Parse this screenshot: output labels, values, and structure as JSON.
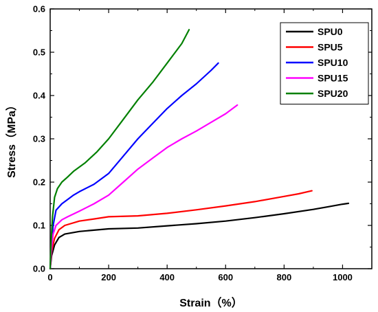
{
  "chart_data": {
    "type": "line",
    "xlabel": "Strain（%）",
    "ylabel": "Stress（MPa）",
    "xlim": [
      0,
      1100
    ],
    "ylim": [
      0,
      0.6
    ],
    "xticks": [
      0,
      200,
      400,
      600,
      800,
      1000
    ],
    "yticks": [
      0.0,
      0.1,
      0.2,
      0.3,
      0.4,
      0.5,
      0.6
    ],
    "xtick_labels": [
      "0",
      "200",
      "400",
      "600",
      "800",
      "1000"
    ],
    "ytick_labels": [
      "0.0",
      "0.1",
      "0.2",
      "0.3",
      "0.4",
      "0.5",
      "0.6"
    ],
    "grid": false,
    "legend_position": "top-right",
    "series": [
      {
        "name": "SPU0",
        "color": "#000000",
        "points": [
          [
            0,
            0
          ],
          [
            5,
            0.03
          ],
          [
            15,
            0.055
          ],
          [
            30,
            0.072
          ],
          [
            50,
            0.08
          ],
          [
            100,
            0.086
          ],
          [
            150,
            0.089
          ],
          [
            200,
            0.092
          ],
          [
            300,
            0.094
          ],
          [
            400,
            0.099
          ],
          [
            500,
            0.104
          ],
          [
            600,
            0.11
          ],
          [
            700,
            0.118
          ],
          [
            800,
            0.127
          ],
          [
            900,
            0.137
          ],
          [
            950,
            0.143
          ],
          [
            1000,
            0.149
          ],
          [
            1020,
            0.151
          ]
        ]
      },
      {
        "name": "SPU5",
        "color": "#ff0000",
        "points": [
          [
            0,
            0
          ],
          [
            5,
            0.04
          ],
          [
            15,
            0.07
          ],
          [
            30,
            0.09
          ],
          [
            50,
            0.1
          ],
          [
            100,
            0.11
          ],
          [
            150,
            0.115
          ],
          [
            200,
            0.12
          ],
          [
            300,
            0.122
          ],
          [
            400,
            0.128
          ],
          [
            500,
            0.136
          ],
          [
            600,
            0.145
          ],
          [
            700,
            0.155
          ],
          [
            800,
            0.167
          ],
          [
            850,
            0.173
          ],
          [
            895,
            0.18
          ]
        ]
      },
      {
        "name": "SPU10",
        "color": "#0000ff",
        "points": [
          [
            0,
            0
          ],
          [
            5,
            0.06
          ],
          [
            10,
            0.1
          ],
          [
            20,
            0.135
          ],
          [
            40,
            0.15
          ],
          [
            60,
            0.16
          ],
          [
            80,
            0.17
          ],
          [
            100,
            0.178
          ],
          [
            150,
            0.195
          ],
          [
            200,
            0.22
          ],
          [
            250,
            0.26
          ],
          [
            300,
            0.3
          ],
          [
            350,
            0.335
          ],
          [
            400,
            0.37
          ],
          [
            450,
            0.4
          ],
          [
            500,
            0.427
          ],
          [
            550,
            0.458
          ],
          [
            575,
            0.475
          ]
        ]
      },
      {
        "name": "SPU15",
        "color": "#ff00ff",
        "points": [
          [
            0,
            0
          ],
          [
            5,
            0.05
          ],
          [
            10,
            0.08
          ],
          [
            20,
            0.1
          ],
          [
            40,
            0.113
          ],
          [
            60,
            0.12
          ],
          [
            100,
            0.133
          ],
          [
            150,
            0.15
          ],
          [
            200,
            0.17
          ],
          [
            250,
            0.2
          ],
          [
            300,
            0.23
          ],
          [
            350,
            0.255
          ],
          [
            400,
            0.28
          ],
          [
            450,
            0.3
          ],
          [
            500,
            0.318
          ],
          [
            550,
            0.338
          ],
          [
            600,
            0.358
          ],
          [
            640,
            0.378
          ]
        ]
      },
      {
        "name": "SPU20",
        "color": "#008000",
        "points": [
          [
            0,
            0
          ],
          [
            3,
            0.06
          ],
          [
            8,
            0.12
          ],
          [
            15,
            0.165
          ],
          [
            25,
            0.185
          ],
          [
            40,
            0.2
          ],
          [
            60,
            0.212
          ],
          [
            80,
            0.225
          ],
          [
            120,
            0.245
          ],
          [
            160,
            0.27
          ],
          [
            200,
            0.3
          ],
          [
            250,
            0.345
          ],
          [
            300,
            0.39
          ],
          [
            350,
            0.43
          ],
          [
            400,
            0.475
          ],
          [
            450,
            0.52
          ],
          [
            475,
            0.552
          ]
        ]
      }
    ]
  }
}
